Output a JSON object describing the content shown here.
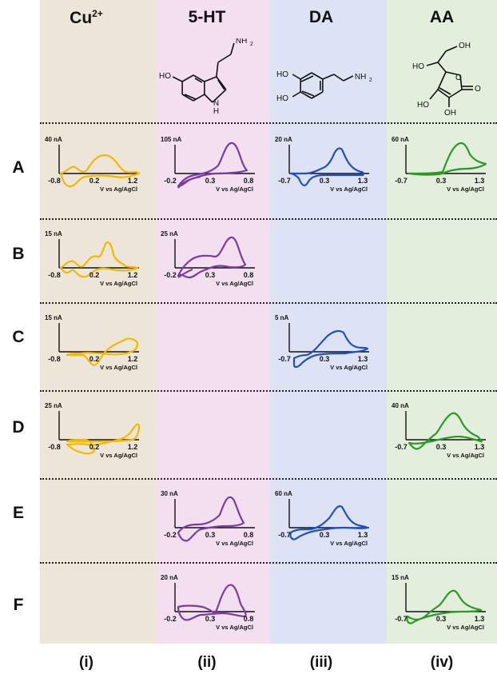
{
  "columns": [
    {
      "header": "Cu",
      "header_sup": "2+",
      "label": "(i)",
      "bg": "#ede6d8",
      "color": "#f5b800"
    },
    {
      "header": "5-HT",
      "header_sup": "",
      "label": "(ii)",
      "bg": "#f3dff0",
      "color": "#7a3aa8"
    },
    {
      "header": "DA",
      "header_sup": "",
      "label": "(iii)",
      "bg": "#dde3f5",
      "color": "#1f4fc8"
    },
    {
      "header": "AA",
      "header_sup": "",
      "label": "(iv)",
      "bg": "#e3eedc",
      "color": "#2a9a25"
    }
  ],
  "structures": {
    "serotonin": {
      "HO": "HO",
      "NH2": "NH",
      "NH2_sub": "2",
      "NH": "N",
      "H": "H"
    },
    "dopamine": {
      "HO1": "HO",
      "HO2": "HO",
      "NH2": "NH",
      "NH2_sub": "2"
    },
    "ascorbic": {
      "OH1": "OH",
      "HO": "HO",
      "O": "O",
      "HO2": "HO",
      "OH2": "OH"
    }
  },
  "rows": [
    "A",
    "B",
    "C",
    "D",
    "E",
    "F"
  ],
  "xaxis_label": "V vs Ag/AgCl",
  "panels": [
    {
      "row": 0,
      "col": 0,
      "scale": "40 nA",
      "ticks": [
        "-0.8",
        "0.2",
        "1.2"
      ],
      "shape": "cu_a"
    },
    {
      "row": 0,
      "col": 1,
      "scale": "105 nA",
      "ticks": [
        "-0.2",
        "0.3",
        "0.8"
      ],
      "shape": "ht_a"
    },
    {
      "row": 0,
      "col": 2,
      "scale": "20 nA",
      "ticks": [
        "-0.7",
        "0.3",
        "1.3"
      ],
      "shape": "da_a"
    },
    {
      "row": 0,
      "col": 3,
      "scale": "60 nA",
      "ticks": [
        "-0.7",
        "0.3",
        "1.3"
      ],
      "shape": "aa_a"
    },
    {
      "row": 1,
      "col": 0,
      "scale": "15 nA",
      "ticks": [
        "-0.8",
        "0.2",
        "1.2"
      ],
      "shape": "cu_b"
    },
    {
      "row": 1,
      "col": 1,
      "scale": "25 nA",
      "ticks": [
        "-0.2",
        "0.3",
        "0.8"
      ],
      "shape": "ht_b"
    },
    {
      "row": 2,
      "col": 0,
      "scale": "15 nA",
      "ticks": [
        "-0.8",
        "0.2",
        "1.2"
      ],
      "shape": "cu_c"
    },
    {
      "row": 2,
      "col": 2,
      "scale": "5 nA",
      "ticks": [
        "-0.7",
        "0.3",
        "1.3"
      ],
      "shape": "da_c"
    },
    {
      "row": 3,
      "col": 0,
      "scale": "25 nA",
      "ticks": [
        "-0.8",
        "0.2",
        "1.2"
      ],
      "shape": "cu_d"
    },
    {
      "row": 3,
      "col": 3,
      "scale": "40 nA",
      "ticks": [
        "-0.7",
        "0.3",
        "1.3"
      ],
      "shape": "aa_d"
    },
    {
      "row": 4,
      "col": 1,
      "scale": "30 nA",
      "ticks": [
        "-0.2",
        "0.3",
        "0.8"
      ],
      "shape": "ht_e"
    },
    {
      "row": 4,
      "col": 2,
      "scale": "60 nA",
      "ticks": [
        "-0.7",
        "0.3",
        "1.3"
      ],
      "shape": "da_e"
    },
    {
      "row": 5,
      "col": 1,
      "scale": "20 nA",
      "ticks": [
        "-0.2",
        "0.3",
        "0.8"
      ],
      "shape": "ht_f"
    },
    {
      "row": 5,
      "col": 3,
      "scale": "15 nA",
      "ticks": [
        "-0.7",
        "0.3",
        "1.3"
      ],
      "shape": "aa_f"
    }
  ]
}
